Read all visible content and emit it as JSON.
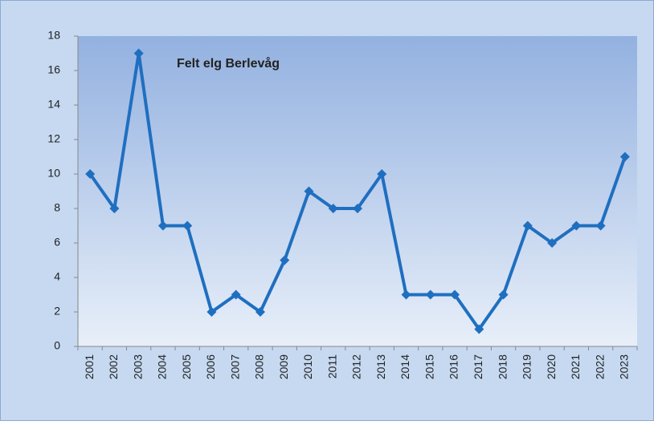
{
  "chart_data": {
    "type": "line",
    "title": "Felt elg Berlevåg",
    "categories": [
      "2001",
      "2002",
      "2003",
      "2004",
      "2005",
      "2006",
      "2007",
      "2008",
      "2009",
      "2010",
      "2011",
      "2012",
      "2013",
      "2014",
      "2015",
      "2016",
      "2017",
      "2018",
      "2019",
      "2020",
      "2021",
      "2022",
      "2023"
    ],
    "values": [
      10,
      8,
      17,
      7,
      7,
      2,
      3,
      2,
      5,
      9,
      8,
      8,
      10,
      3,
      3,
      3,
      1,
      3,
      7,
      6,
      7,
      7,
      11
    ],
    "color": "#1f6fc0",
    "ylim": [
      0,
      18
    ],
    "yticks": [
      0,
      2,
      4,
      6,
      8,
      10,
      12,
      14,
      16,
      18
    ]
  }
}
